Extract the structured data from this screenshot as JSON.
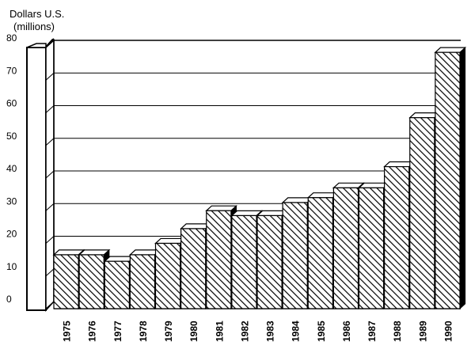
{
  "chart_data": {
    "type": "bar",
    "title": "",
    "ylabel_line1": "Dollars U.S.",
    "ylabel_line2": "(millions)",
    "xlabel": "",
    "ylim": [
      0,
      80
    ],
    "yticks": [
      "0",
      "10",
      "20",
      "30",
      "40",
      "50",
      "60",
      "70",
      "80"
    ],
    "grid": true,
    "style": "3d-hatched",
    "categories": [
      "1975",
      "1976",
      "1977",
      "1978",
      "1979",
      "1980",
      "1981",
      "1982",
      "1983",
      "1984",
      "1985",
      "1986",
      "1987",
      "1988",
      "1989",
      "1990"
    ],
    "values": [
      16.5,
      16.5,
      14.5,
      16.5,
      20,
      24.5,
      30,
      28.5,
      28.5,
      32.5,
      34,
      37,
      37,
      43.5,
      58.5,
      78.5
    ]
  }
}
